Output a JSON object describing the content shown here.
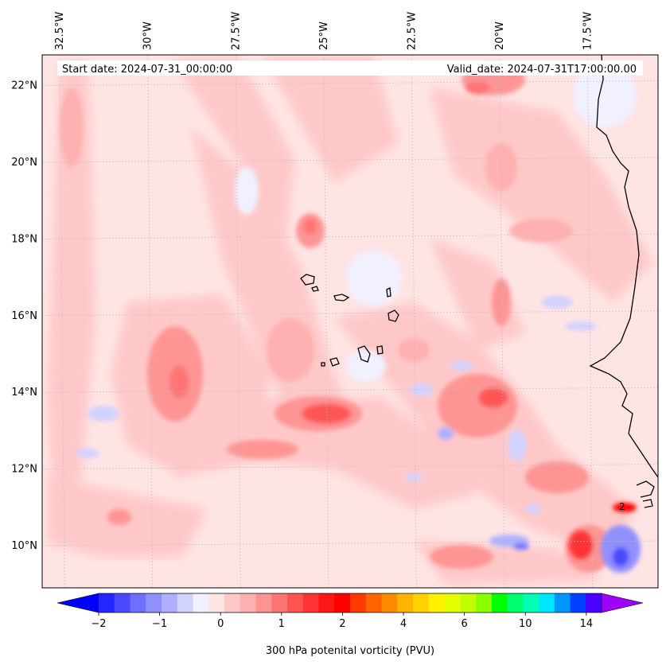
{
  "map": {
    "start_date": "Start date: 2024-07-31_00:00:00",
    "valid_date": "Valid_date: 2024-07-31T17:00:00.00",
    "lon_labels": [
      "32.5°W",
      "30°W",
      "27.5°W",
      "25°W",
      "22.5°W",
      "20°W",
      "17.5°W"
    ],
    "lat_labels": [
      "22°N",
      "20°N",
      "18°N",
      "16°N",
      "14°N",
      "12°N",
      "10°N"
    ],
    "contour_label": "2",
    "extent": {
      "lon": [
        -33,
        -15.5
      ],
      "lat": [
        8.9,
        22.8
      ]
    },
    "projection": "plate carree",
    "grid": true
  },
  "colorbar": {
    "title": "300 hPa potenital vorticity (PVU)",
    "tick_labels": [
      "−2",
      "−1",
      "0",
      "1",
      "2",
      "4",
      "6",
      "10",
      "14"
    ],
    "levels": [
      -2,
      -1.75,
      -1.5,
      -1.25,
      -1,
      -0.75,
      -0.5,
      -0.25,
      0,
      0.25,
      0.5,
      0.75,
      1,
      1.25,
      1.5,
      1.75,
      2,
      2.5,
      3,
      3.5,
      4,
      4.5,
      5,
      5.5,
      6,
      7,
      8,
      9,
      10,
      11,
      12,
      13,
      14,
      15
    ],
    "colors": [
      "#0000ff",
      "#2525ff",
      "#4a4aff",
      "#6e6eff",
      "#9090ff",
      "#b0b0ff",
      "#d2d2ff",
      "#f0f0ff",
      "#ffe4e4",
      "#ffc8c8",
      "#ffb0b0",
      "#ff9494",
      "#ff7474",
      "#ff5454",
      "#ff3434",
      "#ff1616",
      "#ff0000",
      "#ff3a00",
      "#ff6400",
      "#ff8c00",
      "#ffb400",
      "#ffd200",
      "#fff000",
      "#e6ff00",
      "#c0ff00",
      "#8cff00",
      "#00ff00",
      "#00ff6e",
      "#00ffb4",
      "#00e6ff",
      "#0096ff",
      "#0040ff",
      "#4b00ff",
      "#a000ff"
    ],
    "extend": "both"
  }
}
